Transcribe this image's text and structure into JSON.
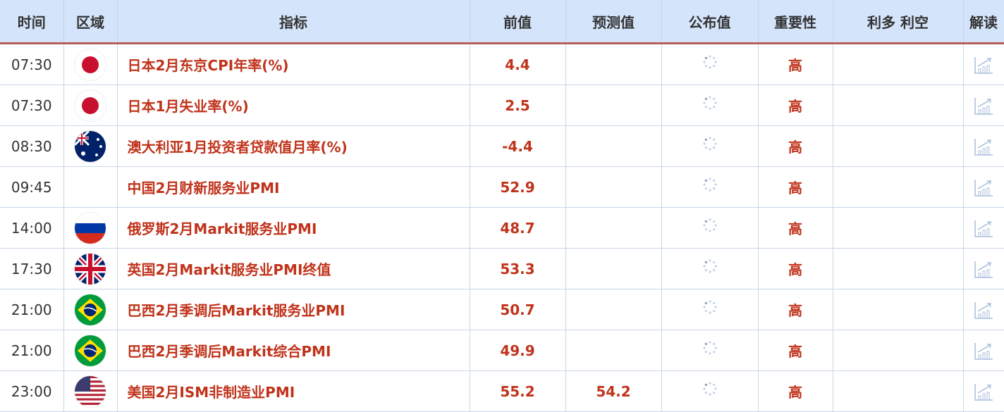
{
  "headers": {
    "time": "时间",
    "region": "区域",
    "indicator": "指标",
    "previous": "前值",
    "forecast": "预测值",
    "actual": "公布值",
    "importance": "重要性",
    "impact": "利多 利空",
    "analysis": "解读"
  },
  "rows": [
    {
      "time": "07:30",
      "flag": "japan",
      "indicator": "日本2月东京CPI年率(%)",
      "previous": "4.4",
      "forecast": "",
      "importance": "高"
    },
    {
      "time": "07:30",
      "flag": "japan",
      "indicator": "日本1月失业率(%)",
      "previous": "2.5",
      "forecast": "",
      "importance": "高"
    },
    {
      "time": "08:30",
      "flag": "australia",
      "indicator": "澳大利亚1月投资者贷款值月率(%)",
      "previous": "-4.4",
      "forecast": "",
      "importance": "高"
    },
    {
      "time": "09:45",
      "flag": "",
      "indicator": "中国2月财新服务业PMI",
      "previous": "52.9",
      "forecast": "",
      "importance": "高"
    },
    {
      "time": "14:00",
      "flag": "russia",
      "indicator": "俄罗斯2月Markit服务业PMI",
      "previous": "48.7",
      "forecast": "",
      "importance": "高"
    },
    {
      "time": "17:30",
      "flag": "uk",
      "indicator": "英国2月Markit服务业PMI终值",
      "previous": "53.3",
      "forecast": "",
      "importance": "高"
    },
    {
      "time": "21:00",
      "flag": "brazil",
      "indicator": "巴西2月季调后Markit服务业PMI",
      "previous": "50.7",
      "forecast": "",
      "importance": "高"
    },
    {
      "time": "21:00",
      "flag": "brazil",
      "indicator": "巴西2月季调后Markit综合PMI",
      "previous": "49.9",
      "forecast": "",
      "importance": "高"
    },
    {
      "time": "23:00",
      "flag": "usa",
      "indicator": "美国2月ISM非制造业PMI",
      "previous": "55.2",
      "forecast": "54.2",
      "importance": "高"
    }
  ],
  "colors": {
    "header_bg": "#d4e4fb",
    "accent_red": "#c0331b",
    "header_border": "#b85c5c"
  }
}
